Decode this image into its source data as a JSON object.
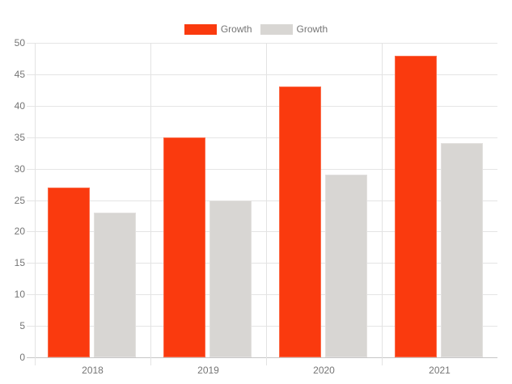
{
  "colors": {
    "series_red": "#fa3a0e",
    "series_gray": "#d8d6d3",
    "gridline": "#e5e5e5",
    "zero_line": "#c6c6c6",
    "axis_text": "#757575",
    "background": "#ffffff"
  },
  "legend": {
    "items": [
      {
        "label": "Growth",
        "color": "#fa3a0e"
      },
      {
        "label": "Growth",
        "color": "#d8d6d3"
      }
    ]
  },
  "chart_data": {
    "type": "bar",
    "title": "",
    "categories": [
      "2018",
      "2019",
      "2020",
      "2021"
    ],
    "series": [
      {
        "name": "Growth",
        "color": "#fa3a0e",
        "values": [
          27,
          35,
          43,
          48
        ]
      },
      {
        "name": "Growth",
        "color": "#d8d6d3",
        "values": [
          23,
          25,
          29,
          34
        ]
      }
    ],
    "xlabel": "",
    "ylabel": "",
    "ylim": [
      0,
      50
    ],
    "ytick_step": 5,
    "yticks": [
      0,
      5,
      10,
      15,
      20,
      25,
      30,
      35,
      40,
      45,
      50
    ],
    "grid": true,
    "legend_position": "top-center"
  }
}
